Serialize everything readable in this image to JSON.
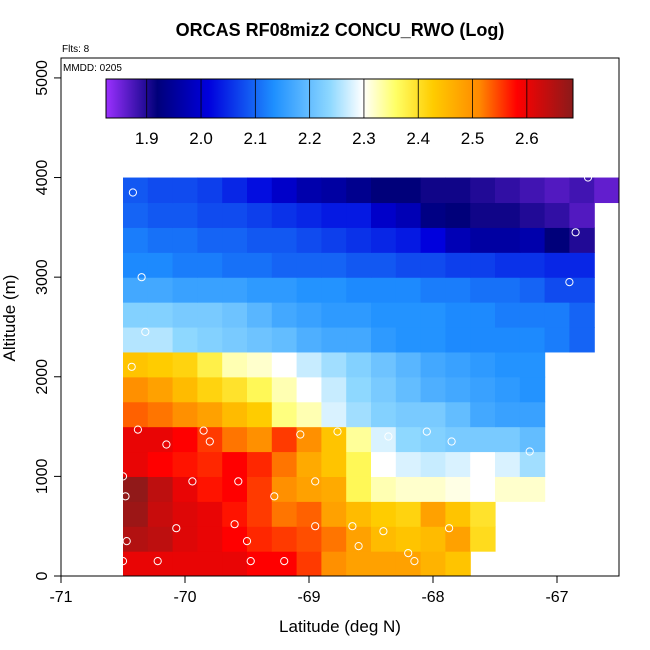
{
  "chart_data": {
    "type": "heatmap",
    "title": "ORCAS RF08miz2 CONCU_RWO (Log)",
    "xlabel": "Latitude (deg N)",
    "ylabel": "Altitude (m)",
    "xlim": [
      -71,
      -66.5
    ],
    "ylim": [
      0,
      5200
    ],
    "x_ticks": [
      -71,
      -70,
      -69,
      -68,
      -67
    ],
    "x_tick_labels": [
      "-71",
      "-70",
      "-69",
      "-68",
      "-67"
    ],
    "y_ticks": [
      0,
      1000,
      2000,
      3000,
      4000,
      5000
    ],
    "y_tick_labels": [
      "0",
      "1000",
      "2000",
      "3000",
      "4000",
      "5000"
    ],
    "flights_label": "Flts: 8",
    "date_label": "MMDD: 0205",
    "colorbar": {
      "range": [
        1.825,
        2.685
      ],
      "ticks": [
        1.9,
        2.0,
        2.1,
        2.2,
        2.3,
        2.4,
        2.5,
        2.6
      ],
      "tick_labels": [
        "1.9",
        "2.0",
        "2.1",
        "2.2",
        "2.3",
        "2.4",
        "2.5",
        "2.6"
      ],
      "colors": [
        "#9b30ff",
        "#0000c8",
        "#1e90ff",
        "#00bfff",
        "#ffffff",
        "#ffff00",
        "#ffa500",
        "#ff0000",
        "#8b1a1a"
      ]
    },
    "grid": {
      "x_start": -70.5,
      "x_step": 0.2,
      "y_start": 0,
      "y_step": 250,
      "rows_bottom_to_top": [
        [
          2.6,
          2.6,
          2.6,
          2.6,
          2.6,
          2.58,
          2.58,
          2.55,
          2.5,
          2.48,
          2.48,
          2.48,
          2.46,
          2.44,
          null,
          null,
          null,
          null,
          null,
          null,
          null,
          null
        ],
        [
          2.65,
          2.64,
          2.61,
          2.6,
          2.58,
          2.56,
          2.55,
          2.54,
          2.52,
          2.48,
          2.45,
          2.44,
          2.45,
          2.48,
          2.41,
          null,
          null,
          null,
          null,
          null,
          null,
          null
        ],
        [
          2.67,
          2.63,
          2.61,
          2.6,
          2.57,
          2.55,
          2.52,
          2.53,
          2.48,
          2.45,
          2.43,
          2.42,
          2.48,
          2.44,
          2.4,
          null,
          null,
          null,
          null,
          null,
          null,
          null
        ],
        [
          2.68,
          2.64,
          2.6,
          2.57,
          2.58,
          2.55,
          2.5,
          2.48,
          2.47,
          2.37,
          2.33,
          2.32,
          2.32,
          2.31,
          2.3,
          2.32,
          2.32,
          null,
          null,
          null,
          null,
          null
        ],
        [
          2.6,
          2.58,
          2.57,
          2.56,
          2.58,
          2.56,
          2.52,
          2.47,
          2.44,
          2.37,
          2.3,
          2.28,
          2.27,
          2.28,
          2.3,
          2.28,
          2.25,
          null,
          null,
          null,
          null,
          null
        ],
        [
          2.6,
          2.6,
          2.58,
          2.55,
          2.52,
          2.5,
          2.55,
          2.5,
          2.44,
          2.34,
          2.28,
          2.24,
          2.23,
          2.22,
          2.22,
          2.22,
          2.2,
          null,
          null,
          null,
          null,
          null
        ],
        [
          2.53,
          2.52,
          2.5,
          2.48,
          2.45,
          2.43,
          2.35,
          2.33,
          2.28,
          2.25,
          2.23,
          2.22,
          2.22,
          2.2,
          2.17,
          2.16,
          2.16,
          null,
          null,
          null,
          null,
          null
        ],
        [
          2.5,
          2.48,
          2.45,
          2.42,
          2.4,
          2.37,
          2.33,
          2.3,
          2.27,
          2.24,
          2.22,
          2.2,
          2.18,
          2.17,
          2.16,
          2.15,
          2.14,
          null,
          null,
          null,
          null,
          null
        ],
        [
          2.44,
          2.43,
          2.42,
          2.38,
          2.33,
          2.32,
          2.3,
          2.27,
          2.25,
          2.23,
          2.21,
          2.19,
          2.17,
          2.16,
          2.15,
          2.14,
          2.14,
          null,
          null,
          null,
          null,
          null
        ],
        [
          2.26,
          2.26,
          2.24,
          2.23,
          2.22,
          2.21,
          2.2,
          2.18,
          2.17,
          2.17,
          2.15,
          2.14,
          2.14,
          2.13,
          2.13,
          2.13,
          2.13,
          2.12,
          2.1,
          null,
          null,
          null
        ],
        [
          2.23,
          2.23,
          2.22,
          2.22,
          2.21,
          2.19,
          2.17,
          2.16,
          2.15,
          2.15,
          2.14,
          2.14,
          2.14,
          2.13,
          2.13,
          2.12,
          2.12,
          2.12,
          2.1,
          null,
          null,
          null
        ],
        [
          2.17,
          2.17,
          2.16,
          2.16,
          2.16,
          2.15,
          2.15,
          2.14,
          2.14,
          2.13,
          2.13,
          2.13,
          2.12,
          2.12,
          2.11,
          2.11,
          2.1,
          2.08,
          2.08,
          null,
          null,
          null
        ],
        [
          2.13,
          2.13,
          2.12,
          2.12,
          2.11,
          2.11,
          2.1,
          2.1,
          2.1,
          2.09,
          2.09,
          2.08,
          2.08,
          2.07,
          2.07,
          2.06,
          2.06,
          2.05,
          2.05,
          null,
          null,
          null
        ],
        [
          2.12,
          2.11,
          2.11,
          2.1,
          2.1,
          2.09,
          2.09,
          2.08,
          2.07,
          2.06,
          2.05,
          2.04,
          2.02,
          1.98,
          1.96,
          1.96,
          1.97,
          1.92,
          1.9,
          null,
          null,
          null
        ],
        [
          2.1,
          2.09,
          2.09,
          2.08,
          2.08,
          2.07,
          2.06,
          2.05,
          2.04,
          2.04,
          2.0,
          1.98,
          1.93,
          1.92,
          1.91,
          1.91,
          1.9,
          1.89,
          1.87,
          null,
          null,
          null
        ],
        [
          2.09,
          2.08,
          2.08,
          2.07,
          2.05,
          2.03,
          2.0,
          1.97,
          1.96,
          1.94,
          1.92,
          1.92,
          1.91,
          1.91,
          1.9,
          1.89,
          1.88,
          1.87,
          1.88,
          1.86,
          1.85,
          1.84
        ]
      ]
    },
    "points": [
      [
        -70.5,
        150
      ],
      [
        -70.22,
        150
      ],
      [
        -69.47,
        150
      ],
      [
        -69.2,
        150
      ],
      [
        -68.15,
        150
      ],
      [
        -67.6,
        150
      ],
      [
        -67.45,
        150
      ],
      [
        -70.47,
        350
      ],
      [
        -69.5,
        350
      ],
      [
        -68.6,
        300
      ],
      [
        -68.2,
        230
      ],
      [
        -70.55,
        450
      ],
      [
        -70.07,
        480
      ],
      [
        -69.6,
        520
      ],
      [
        -68.95,
        500
      ],
      [
        -68.65,
        500
      ],
      [
        -68.4,
        450
      ],
      [
        -67.87,
        480
      ],
      [
        -67.32,
        480
      ],
      [
        -70.48,
        800
      ],
      [
        -69.94,
        950
      ],
      [
        -69.57,
        950
      ],
      [
        -68.95,
        950
      ],
      [
        -69.28,
        800
      ],
      [
        -70.5,
        1000
      ],
      [
        -70.15,
        1320
      ],
      [
        -69.85,
        1460
      ],
      [
        -69.8,
        1350
      ],
      [
        -69.07,
        1420
      ],
      [
        -68.77,
        1450
      ],
      [
        -68.36,
        1400
      ],
      [
        -68.05,
        1450
      ],
      [
        -67.85,
        1350
      ],
      [
        -67.22,
        1250
      ],
      [
        -67.05,
        1510
      ],
      [
        -70.38,
        1470
      ],
      [
        -70.43,
        2100
      ],
      [
        -67.05,
        2150
      ],
      [
        -70.32,
        2450
      ],
      [
        -70.35,
        3000
      ],
      [
        -66.9,
        2950
      ],
      [
        -70.42,
        3850
      ],
      [
        -66.85,
        3450
      ],
      [
        -66.75,
        4000
      ]
    ]
  }
}
